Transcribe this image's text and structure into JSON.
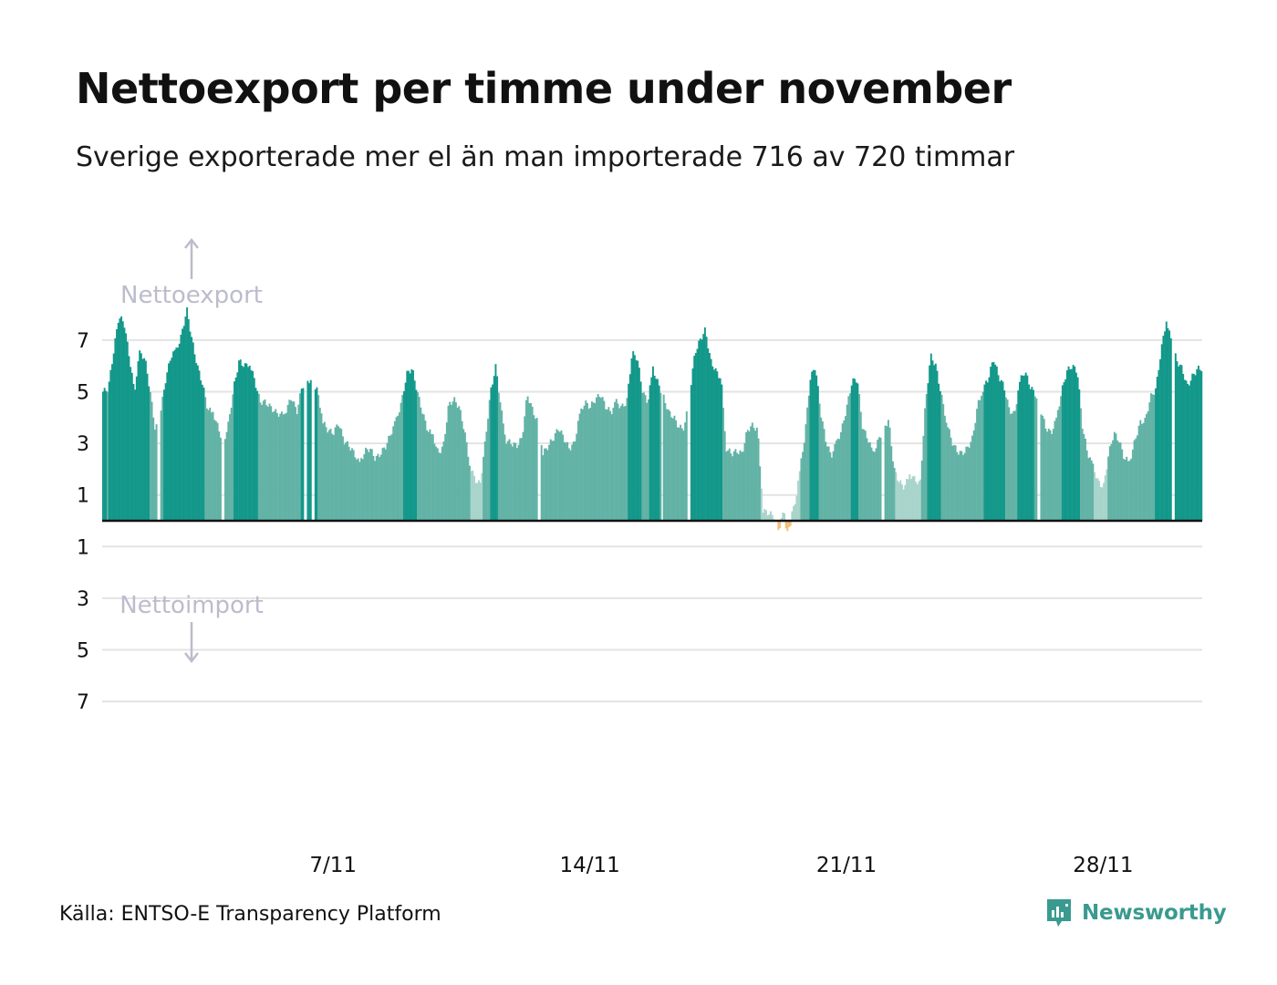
{
  "title": "Nettoexport per timme under november",
  "subtitle": "Sverige exporterade mer el än man importerade 716 av 720 timmar",
  "source": "Källa: ENTSO-E Transparency Platform",
  "brand": "Newsworthy",
  "colors": {
    "export_dark": "#13988a",
    "export_mid": "#62b3a6",
    "export_light": "#a8d4cc",
    "import": "#f0c078",
    "gridline": "#e3e3e3",
    "baseline": "#111111",
    "annotation": "#bcbccc",
    "brand": "#3a9a8f"
  },
  "chart_data": {
    "type": "bar",
    "annotations": {
      "export_label": "Nettoexport",
      "import_label": "Nettoimport"
    },
    "y_ticks": [
      {
        "value": 7,
        "label": "7"
      },
      {
        "value": 5,
        "label": "5"
      },
      {
        "value": 3,
        "label": "3"
      },
      {
        "value": 1,
        "label": "1"
      },
      {
        "value": -1,
        "label": "1"
      },
      {
        "value": -3,
        "label": "3"
      },
      {
        "value": -5,
        "label": "5"
      },
      {
        "value": -7,
        "label": "7"
      }
    ],
    "ylim": [
      -7,
      8.3
    ],
    "x_ticks": [
      {
        "day": 7,
        "label": "7/11"
      },
      {
        "day": 14,
        "label": "14/11"
      },
      {
        "day": 21,
        "label": "21/11"
      },
      {
        "day": 28,
        "label": "28/11"
      }
    ],
    "xlim_hours": [
      0,
      720
    ],
    "grid": true,
    "series": [
      {
        "values_per_hour_note": "",
        "daily_profile": [
          [
            5.0,
            5.1,
            6.5,
            7.9,
            7.7,
            6.4,
            5.0
          ],
          [
            6.5,
            6.3,
            5.0,
            3.5,
            4.2,
            5.5,
            6.4
          ],
          [
            6.6,
            7.2,
            8.2,
            7.0,
            6.0,
            5.3,
            4.3
          ],
          [
            4.2,
            3.6,
            3.0,
            3.8,
            5.2,
            6.2,
            6.0
          ],
          [
            6.1,
            5.4,
            4.6,
            4.6,
            4.4,
            4.2,
            4.1
          ],
          [
            4.3,
            4.8,
            4.2,
            5.2,
            5.5,
            5.3,
            5.0
          ],
          [
            3.8,
            3.5,
            3.4,
            3.8,
            3.1,
            2.9,
            2.6
          ],
          [
            2.2,
            2.7,
            2.8,
            2.4,
            2.6,
            2.9,
            3.4
          ],
          [
            3.9,
            4.6,
            5.7,
            5.9,
            5.0,
            4.2,
            3.5
          ],
          [
            3.3,
            2.6,
            2.9,
            4.5,
            4.7,
            4.4,
            3.5
          ],
          [
            2.2,
            1.6,
            1.4,
            3.1,
            5.0,
            6.0,
            4.3
          ],
          [
            3.1,
            3.0,
            2.9,
            3.2,
            4.9,
            4.3,
            3.8
          ],
          [
            2.6,
            2.9,
            3.2,
            3.6,
            3.2,
            2.8,
            3.0
          ],
          [
            4.1,
            4.6,
            4.4,
            4.7,
            4.9,
            4.4,
            4.2
          ],
          [
            4.6,
            4.4,
            4.6,
            6.5,
            6.3,
            5.0,
            4.6
          ],
          [
            5.9,
            5.3,
            4.8,
            4.2,
            4.0,
            3.6,
            3.6
          ],
          [
            4.9,
            6.5,
            7.0,
            7.4,
            6.2,
            5.8,
            5.5
          ],
          [
            2.8,
            2.6,
            2.7,
            2.6,
            3.5,
            3.7,
            3.5
          ],
          [
            0.4,
            0.3,
            0.2,
            -0.35,
            0.4,
            0.2,
            0.5
          ],
          [
            1.9,
            3.3,
            5.5,
            6.0,
            4.2,
            3.1,
            2.5
          ],
          [
            3.0,
            3.5,
            4.4,
            5.4,
            5.5,
            3.6,
            3.2
          ],
          [
            2.6,
            3.1,
            3.6,
            3.9,
            2.0,
            1.5,
            1.3
          ],
          [
            1.8,
            1.6,
            1.4,
            4.5,
            6.4,
            6.0,
            4.9
          ],
          [
            3.9,
            3.1,
            2.7,
            2.6,
            2.8,
            3.2,
            4.5
          ],
          [
            5.1,
            5.5,
            6.3,
            5.6,
            5.2,
            4.3,
            4.1
          ],
          [
            5.4,
            5.8,
            5.2,
            4.9,
            4.3,
            3.6,
            3.4
          ],
          [
            3.9,
            5.0,
            5.8,
            6.0,
            5.8,
            3.6,
            2.6
          ],
          [
            2.1,
            1.5,
            1.3,
            2.6,
            3.4,
            3.1,
            2.4
          ],
          [
            2.3,
            3.1,
            3.8,
            3.9,
            4.8,
            5.1,
            6.6
          ],
          [
            7.8,
            6.9,
            6.2,
            5.9,
            5.2,
            5.6,
            5.9
          ]
        ]
      }
    ]
  }
}
